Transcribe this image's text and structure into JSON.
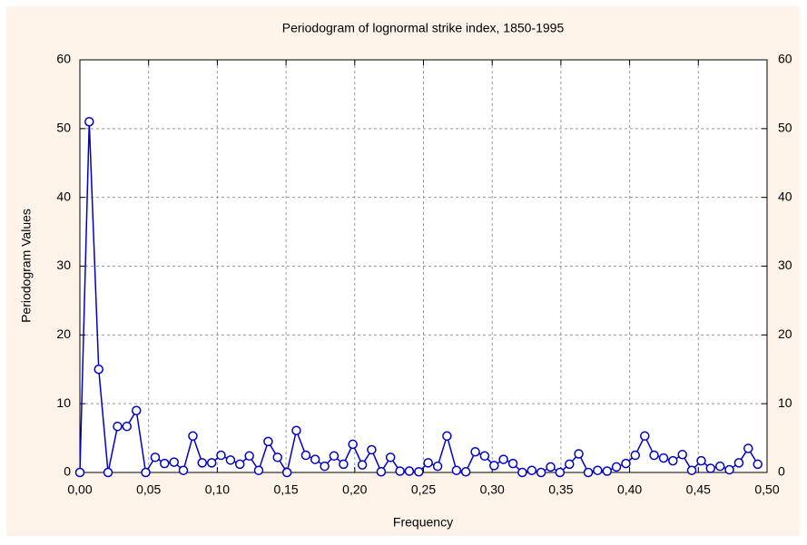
{
  "chart_data": {
    "type": "line",
    "title": "Periodogram of lognormal strike index, 1850-1995",
    "x_label": "Frequency",
    "y_label": "Periodogram Values",
    "x": [
      0,
      0.0068,
      0.0137,
      0.0205,
      0.0274,
      0.0342,
      0.0411,
      0.0479,
      0.0548,
      0.0616,
      0.0685,
      0.0753,
      0.0822,
      0.089,
      0.0959,
      0.1027,
      0.1096,
      0.1164,
      0.1233,
      0.1301,
      0.137,
      0.1438,
      0.1507,
      0.1575,
      0.1644,
      0.1712,
      0.1781,
      0.1849,
      0.1918,
      0.1986,
      0.2055,
      0.2123,
      0.2192,
      0.226,
      0.2329,
      0.2397,
      0.2466,
      0.2534,
      0.2603,
      0.2671,
      0.274,
      0.2808,
      0.2877,
      0.2945,
      0.3014,
      0.3082,
      0.3151,
      0.3219,
      0.3288,
      0.3356,
      0.3425,
      0.3493,
      0.3562,
      0.363,
      0.3699,
      0.3767,
      0.3836,
      0.3904,
      0.3973,
      0.4041,
      0.411,
      0.4178,
      0.4247,
      0.4315,
      0.4384,
      0.4452,
      0.4521,
      0.4589,
      0.4658,
      0.4726,
      0.4795,
      0.4863,
      0.4932
    ],
    "series": [
      {
        "color": "#0000cc",
        "values": [
          0,
          51,
          15,
          0,
          6.7,
          6.7,
          9,
          0,
          2.2,
          1.3,
          1.5,
          0.3,
          5.3,
          1.4,
          1.4,
          2.5,
          1.8,
          1.2,
          2.4,
          0.3,
          4.5,
          2.2,
          0,
          6.1,
          2.5,
          1.9,
          0.9,
          2.4,
          1.2,
          4.1,
          1.1,
          3.3,
          0.1,
          2.2,
          0.2,
          0.2,
          0.1,
          1.4,
          0.9,
          5.3,
          0.3,
          0.1,
          3.0,
          2.4,
          1.0,
          1.9,
          1.3,
          0,
          0.3,
          0,
          0.8,
          0,
          1.2,
          2.7,
          0,
          0.3,
          0.2,
          0.8,
          1.3,
          2.5,
          5.3,
          2.5,
          2.1,
          1.7,
          2.6,
          0.3,
          1.7,
          0.6,
          0.9,
          0.4,
          1.4,
          3.5,
          1.2
        ]
      }
    ],
    "xlim": [
      0,
      0.5
    ],
    "xticks": [
      {
        "value": 0,
        "label": "0,00"
      },
      {
        "value": 0.05,
        "label": "0,05"
      },
      {
        "value": 0.1,
        "label": "0,10"
      },
      {
        "value": 0.15,
        "label": "0,15"
      },
      {
        "value": 0.2,
        "label": "0,20"
      },
      {
        "value": 0.25,
        "label": "0,25"
      },
      {
        "value": 0.3,
        "label": "0,30"
      },
      {
        "value": 0.35,
        "label": "0,35"
      },
      {
        "value": 0.4,
        "label": "0,40"
      },
      {
        "value": 0.45,
        "label": "0,45"
      },
      {
        "value": 0.5,
        "label": "0,50"
      }
    ],
    "ylim": [
      0,
      60
    ],
    "yticks": [
      0,
      10,
      20,
      30,
      40,
      50,
      60
    ],
    "grid": true
  }
}
